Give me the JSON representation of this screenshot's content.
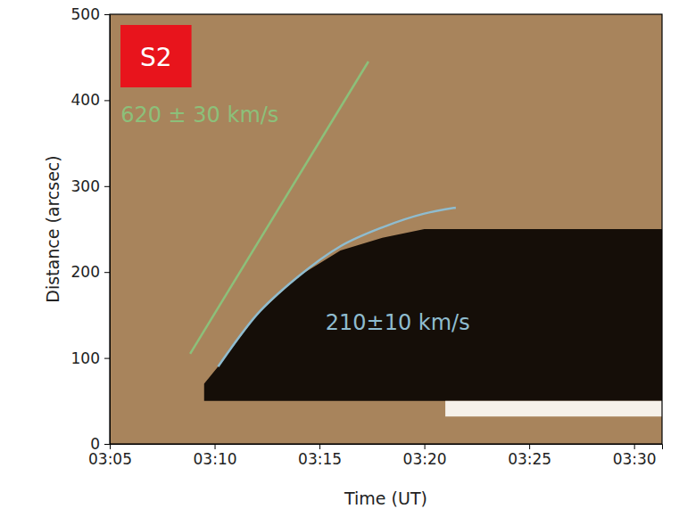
{
  "chart_data": {
    "type": "line",
    "panel_label": "S2",
    "xlabel": "Time (UT)",
    "ylabel": "Distance (arcsec)",
    "color": "#a8845c",
    "xlim": [
      "03:05:00",
      "03:31:20"
    ],
    "xticks": [
      "03:05",
      "03:10",
      "03:15",
      "03:20",
      "03:25",
      "03:30"
    ],
    "ylim": [
      0,
      500
    ],
    "yticks": [
      0,
      100,
      200,
      300,
      400,
      500
    ],
    "grid": false,
    "series": [
      {
        "type": "area",
        "color": "#150e08",
        "x": [
          "03:09:30",
          "03:10:10",
          "03:12:00",
          "03:14:00",
          "03:16:00",
          "03:18:00",
          "03:20:00",
          "03:25:00",
          "03:31:20"
        ],
        "values": [
          70,
          90,
          150,
          195,
          225,
          240,
          250,
          250,
          250
        ],
        "base": [
          50,
          50,
          50,
          50,
          50,
          50,
          50,
          50,
          50
        ]
      },
      {
        "type": "area",
        "color": "#f6f1ea",
        "x": [
          "03:21:00",
          "03:31:20"
        ],
        "values": [
          50,
          50
        ],
        "base": [
          32,
          32
        ]
      },
      {
        "type": "line",
        "color": "#8cc07a",
        "x": [
          "03:08:50",
          "03:17:20"
        ],
        "values": [
          105,
          445
        ]
      },
      {
        "type": "line",
        "color": "#8fbccf",
        "x": [
          "03:10:10",
          "03:12:00",
          "03:14:00",
          "03:16:00",
          "03:18:00",
          "03:20:00",
          "03:21:30"
        ],
        "values": [
          90,
          150,
          195,
          230,
          252,
          268,
          275
        ]
      }
    ],
    "annotations": [
      {
        "text": "620 ± 30 km/s",
        "x": "03:05:31",
        "y": 375,
        "color": "#8cc07a"
      },
      {
        "text": "210±10 km/s",
        "x": "03:15:17",
        "y": 133,
        "color": "#8fbccf"
      }
    ]
  }
}
